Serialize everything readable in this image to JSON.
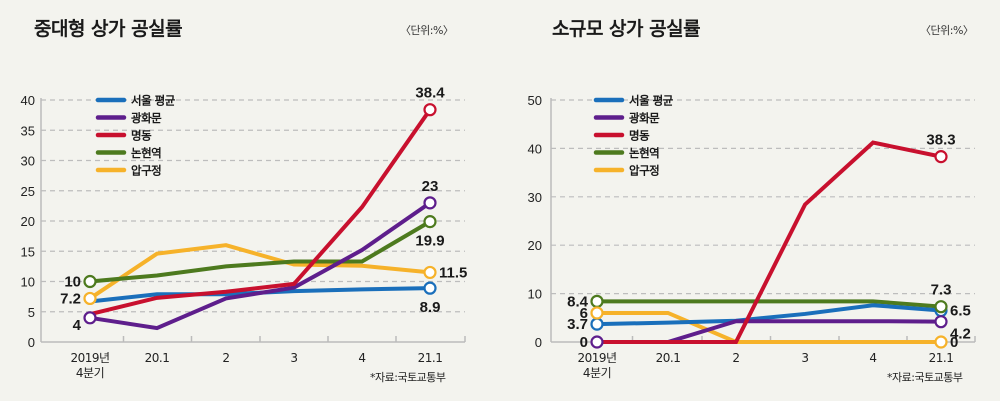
{
  "chart_data": [
    {
      "type": "line",
      "title": "중대형 상가 공실률",
      "unit_note": "〈단위:%〉",
      "source": "*자료:국토교통부",
      "categories": [
        "2019년\n4분기",
        "20.1",
        "2",
        "3",
        "4",
        "21.1"
      ],
      "yticks": [
        0,
        5,
        10,
        15,
        20,
        25,
        30,
        35,
        40
      ],
      "ylim": [
        0,
        40
      ],
      "grid": true,
      "legend_position": "top-left",
      "series": [
        {
          "name": "서울 평균",
          "color": "#1a6fbb",
          "values": [
            6.7,
            7.9,
            7.9,
            8.4,
            8.7,
            8.9
          ],
          "labels": [
            {
              "i": 5,
              "text": "8.9",
              "pos": "below"
            }
          ]
        },
        {
          "name": "광화문",
          "color": "#5e1e8c",
          "values": [
            4,
            2.3,
            7.2,
            9.0,
            15.2,
            23
          ],
          "labels": [
            {
              "i": 0,
              "text": "4",
              "pos": "left-low"
            },
            {
              "i": 5,
              "text": "23",
              "pos": "above"
            }
          ]
        },
        {
          "name": "명동",
          "color": "#c8102e",
          "values": [
            4.6,
            7.3,
            8.3,
            9.6,
            22.3,
            38.4
          ],
          "labels": [
            {
              "i": 5,
              "text": "38.4",
              "pos": "above"
            }
          ]
        },
        {
          "name": "논현역",
          "color": "#4d7a1e",
          "values": [
            10,
            11,
            12.5,
            13.3,
            13.3,
            19.9
          ],
          "labels": [
            {
              "i": 0,
              "text": "10",
              "pos": "left"
            },
            {
              "i": 5,
              "text": "19.9",
              "pos": "below"
            }
          ]
        },
        {
          "name": "압구정",
          "color": "#f6b22a",
          "values": [
            7.2,
            14.6,
            16.0,
            12.8,
            12.6,
            11.5
          ],
          "labels": [
            {
              "i": 0,
              "text": "7.2",
              "pos": "left"
            },
            {
              "i": 5,
              "text": "11.5",
              "pos": "right"
            }
          ]
        }
      ]
    },
    {
      "type": "line",
      "title": "소규모 상가 공실률",
      "unit_note": "〈단위:%〉",
      "source": "*자료:국토교통부",
      "categories": [
        "2019년\n4분기",
        "20.1",
        "2",
        "3",
        "4",
        "21.1"
      ],
      "yticks": [
        0,
        10,
        20,
        30,
        40,
        50
      ],
      "ylim": [
        0,
        50
      ],
      "grid": true,
      "legend_position": "top-left",
      "series": [
        {
          "name": "서울 평균",
          "color": "#1a6fbb",
          "values": [
            3.7,
            4.0,
            4.4,
            5.8,
            7.6,
            6.5
          ],
          "labels": [
            {
              "i": 0,
              "text": "3.7",
              "pos": "left"
            },
            {
              "i": 5,
              "text": "6.5",
              "pos": "right"
            }
          ]
        },
        {
          "name": "광화문",
          "color": "#5e1e8c",
          "values": [
            0,
            0,
            4.3,
            4.3,
            4.3,
            4.2
          ],
          "labels": [
            {
              "i": 0,
              "text": "0",
              "pos": "left"
            },
            {
              "i": 5,
              "text": "4.2",
              "pos": "right-low"
            }
          ]
        },
        {
          "name": "명동",
          "color": "#c8102e",
          "values": [
            0,
            0,
            0,
            28.4,
            41.2,
            38.3
          ],
          "labels": [
            {
              "i": 5,
              "text": "38.3",
              "pos": "above"
            }
          ]
        },
        {
          "name": "논현역",
          "color": "#4d7a1e",
          "values": [
            8.4,
            8.4,
            8.4,
            8.4,
            8.4,
            7.3
          ],
          "labels": [
            {
              "i": 0,
              "text": "8.4",
              "pos": "left"
            },
            {
              "i": 5,
              "text": "7.3",
              "pos": "above"
            }
          ]
        },
        {
          "name": "압구정",
          "color": "#f6b22a",
          "values": [
            6,
            6,
            0,
            0,
            0,
            0
          ],
          "labels": [
            {
              "i": 0,
              "text": "6",
              "pos": "left"
            },
            {
              "i": 5,
              "text": "0",
              "pos": "right"
            }
          ]
        }
      ]
    }
  ]
}
